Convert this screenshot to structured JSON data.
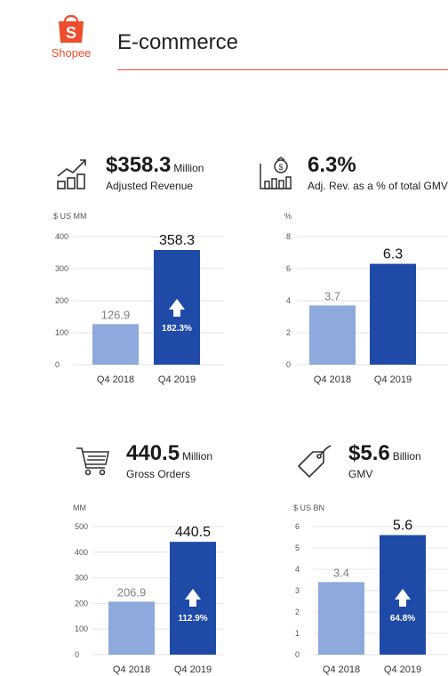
{
  "header": {
    "brand": "Shopee",
    "title": "E-commerce"
  },
  "colors": {
    "accent": "#ee4d2d",
    "bar_prev": "#8ea9db",
    "bar_curr": "#1f4aa8",
    "grid": "#e3e3e3",
    "muted": "#7f7f7f"
  },
  "kpis": [
    {
      "value": "$358.3",
      "unit": "Million",
      "description": "Adjusted Revenue",
      "icon": "revenue-growth-icon"
    },
    {
      "value": "6.3%",
      "unit": "",
      "description": "Adj. Rev. as a % of total GMV",
      "icon": "money-bag-chart-icon"
    },
    {
      "value": "440.5",
      "unit": "Million",
      "description": "Gross Orders",
      "icon": "shopping-cart-icon"
    },
    {
      "value": "$5.6",
      "unit": "Billion",
      "description": "GMV",
      "icon": "price-tag-icon"
    }
  ],
  "chart_data": [
    {
      "type": "bar",
      "ylabel": "$ US MM",
      "categories": [
        "Q4 2018",
        "Q4 2019"
      ],
      "values": [
        126.9,
        358.3
      ],
      "value_labels": [
        "126.9",
        "358.3"
      ],
      "ylim": [
        0,
        400
      ],
      "yticks": [
        0,
        100,
        200,
        300,
        400
      ],
      "growth": "182.3%",
      "grid": true
    },
    {
      "type": "bar",
      "ylabel": "%",
      "categories": [
        "Q4 2018",
        "Q4 2019"
      ],
      "values": [
        3.7,
        6.3
      ],
      "value_labels": [
        "3.7",
        "6.3"
      ],
      "ylim": [
        0,
        8
      ],
      "yticks": [
        0,
        2,
        4,
        6,
        8
      ],
      "growth": "",
      "grid": true
    },
    {
      "type": "bar",
      "ylabel": "MM",
      "categories": [
        "Q4 2018",
        "Q4 2019"
      ],
      "values": [
        206.9,
        440.5
      ],
      "value_labels": [
        "206.9",
        "440.5"
      ],
      "ylim": [
        0,
        500
      ],
      "yticks": [
        0,
        100,
        200,
        300,
        400,
        500
      ],
      "growth": "112.9%",
      "grid": true
    },
    {
      "type": "bar",
      "ylabel": "$ US BN",
      "categories": [
        "Q4 2018",
        "Q4 2019"
      ],
      "values": [
        3.4,
        5.6
      ],
      "value_labels": [
        "3.4",
        "5.6"
      ],
      "ylim": [
        0,
        6
      ],
      "yticks": [
        0,
        1,
        2,
        3,
        4,
        5,
        6
      ],
      "growth": "64.8%",
      "grid": true
    }
  ]
}
